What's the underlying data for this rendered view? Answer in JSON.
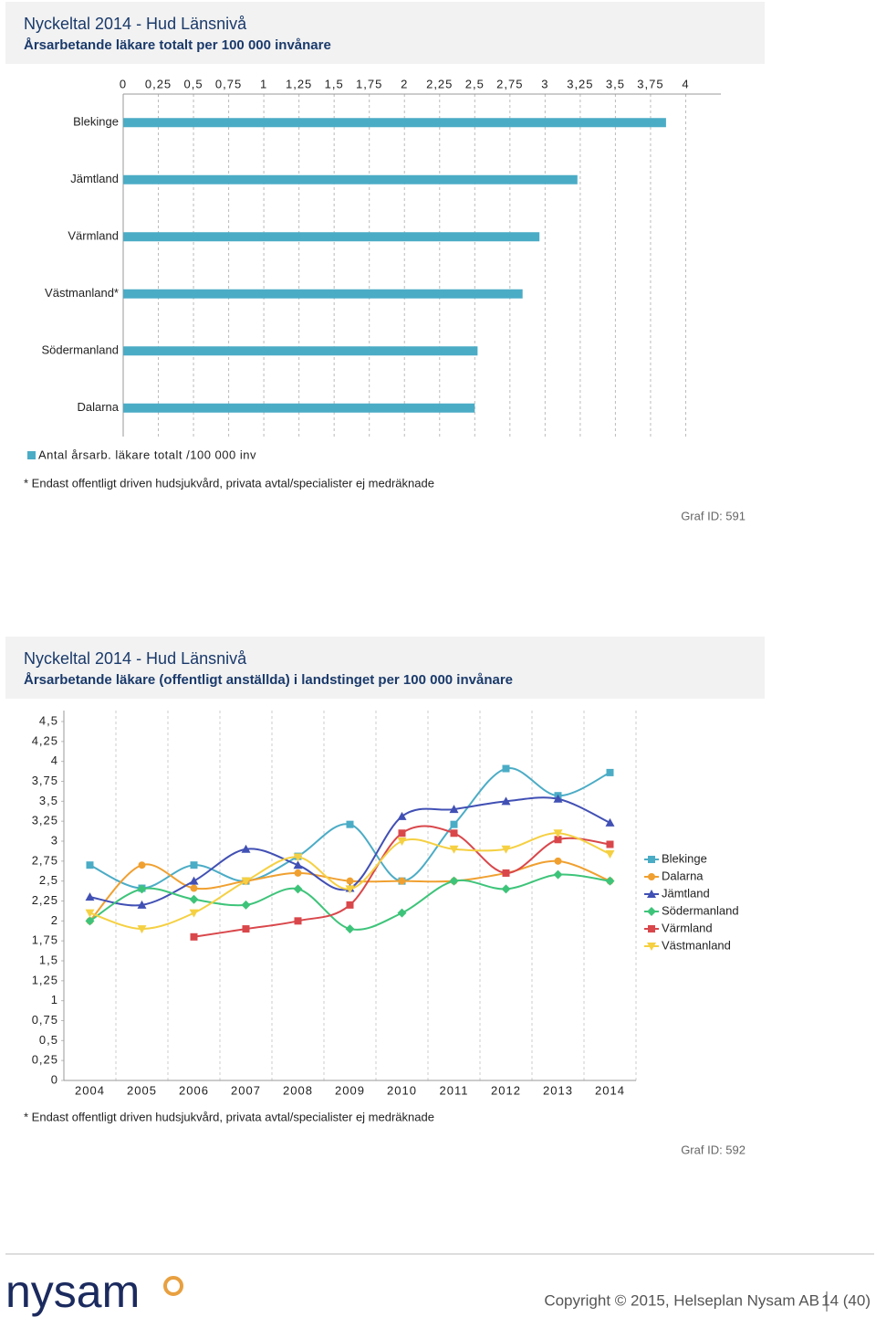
{
  "chart_data": [
    {
      "type": "bar",
      "orientation": "horizontal",
      "title": "Nyckeltal 2014 - Hud Länsnivå",
      "subtitle": "Årsarbetande läkare totalt per 100 000 invånare",
      "categories": [
        "Blekinge",
        "Jämtland",
        "Värmland",
        "Västmanland*",
        "Södermanland",
        "Dalarna"
      ],
      "series": [
        {
          "name": "Antal årsarb. läkare totalt /100 000 inv",
          "color": "#4bacc6",
          "values": [
            3.86,
            3.23,
            2.96,
            2.84,
            2.52,
            2.5
          ]
        }
      ],
      "xlim": [
        0,
        4.25
      ],
      "xticks": [
        0,
        {
          "value": 0.25,
          "label": "0,25"
        },
        {
          "value": 0.5,
          "label": "0,5"
        },
        {
          "value": 0.75,
          "label": "0,75"
        },
        1,
        {
          "value": 1.25,
          "label": "1,25"
        },
        {
          "value": 1.5,
          "label": "1,5"
        },
        {
          "value": 1.75,
          "label": "1,75"
        },
        2,
        {
          "value": 2.25,
          "label": "2,25"
        },
        {
          "value": 2.5,
          "label": "2,5"
        },
        {
          "value": 2.75,
          "label": "2,75"
        },
        3,
        {
          "value": 3.25,
          "label": "3,25"
        },
        {
          "value": 3.5,
          "label": "3,5"
        },
        {
          "value": 3.75,
          "label": "3,75"
        },
        4
      ],
      "grid": true,
      "footnote": "* Endast offentligt driven hudsjukvård, privata avtal/specialister ej medräknade",
      "graph_id": "Graf ID: 591"
    },
    {
      "type": "line",
      "title": "Nyckeltal 2014 - Hud Länsnivå",
      "subtitle": "Årsarbetande läkare (offentligt anställda) i landstinget per 100 000 invånare",
      "categories": [
        "2004",
        "2005",
        "2006",
        "2007",
        "2008",
        "2009",
        "2010",
        "2011",
        "2012",
        "2013",
        "2014"
      ],
      "series": [
        {
          "name": "Blekinge",
          "color": "#4bacc6",
          "marker": "square",
          "values": [
            2.7,
            2.41,
            2.7,
            2.5,
            2.81,
            3.21,
            2.5,
            3.21,
            3.91,
            3.57,
            3.86
          ]
        },
        {
          "name": "Dalarna",
          "color": "#f0a030",
          "marker": "circle",
          "values": [
            2.0,
            2.7,
            2.41,
            2.5,
            2.6,
            2.5,
            2.5,
            2.5,
            2.6,
            2.75,
            2.5
          ]
        },
        {
          "name": "Jämtland",
          "color": "#4150b4",
          "marker": "triangle",
          "values": [
            2.3,
            2.2,
            2.5,
            2.9,
            2.7,
            2.41,
            3.31,
            3.4,
            3.5,
            3.53,
            3.23
          ]
        },
        {
          "name": "Södermanland",
          "color": "#3ec47a",
          "marker": "diamond",
          "values": [
            2.0,
            2.4,
            2.27,
            2.2,
            2.4,
            1.9,
            2.1,
            2.5,
            2.4,
            2.58,
            2.5
          ]
        },
        {
          "name": "Värmland",
          "color": "#d9474b",
          "marker": "square",
          "values": [
            null,
            null,
            1.8,
            1.9,
            2.0,
            2.2,
            3.1,
            3.1,
            2.6,
            3.02,
            2.96
          ]
        },
        {
          "name": "Västmanland",
          "color": "#f5d042",
          "marker": "triangle-down",
          "values": [
            2.1,
            1.9,
            2.1,
            2.5,
            2.8,
            2.4,
            3.0,
            2.9,
            2.9,
            3.1,
            2.84
          ]
        }
      ],
      "ylim": [
        0,
        4.5
      ],
      "yticks": [
        0,
        {
          "value": 0.25,
          "label": "0,25"
        },
        {
          "value": 0.5,
          "label": "0,5"
        },
        {
          "value": 0.75,
          "label": "0,75"
        },
        1,
        {
          "value": 1.25,
          "label": "1,25"
        },
        {
          "value": 1.5,
          "label": "1,5"
        },
        {
          "value": 1.75,
          "label": "1,75"
        },
        2,
        {
          "value": 2.25,
          "label": "2,25"
        },
        {
          "value": 2.5,
          "label": "2,5"
        },
        {
          "value": 2.75,
          "label": "2,75"
        },
        3,
        {
          "value": 3.25,
          "label": "3,25"
        },
        {
          "value": 3.5,
          "label": "3,5"
        },
        {
          "value": 3.75,
          "label": "3,75"
        },
        4,
        {
          "value": 4.25,
          "label": "4,25"
        },
        {
          "value": 4.5,
          "label": "4,5"
        }
      ],
      "footnote": "* Endast offentligt driven hudsjukvård, privata avtal/specialister ej medräknade",
      "graph_id": "Graf ID: 592"
    }
  ],
  "footer": {
    "logo": "nysam",
    "copyright": "Copyright © 2015, Helseplan Nysam AB",
    "page": "14 (40)"
  }
}
